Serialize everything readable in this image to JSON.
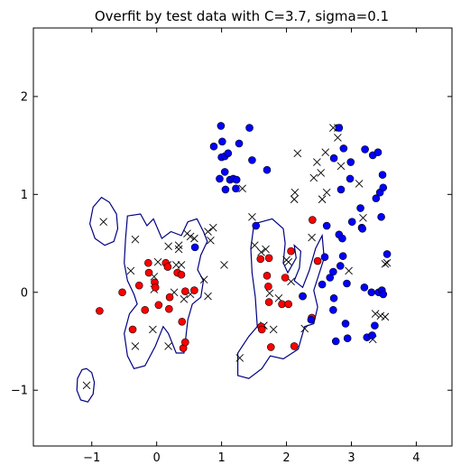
{
  "chart_data": {
    "type": "scatter",
    "title": "Overfit by test data with C=3.7, sigma=0.1",
    "xlabel": "",
    "ylabel": "",
    "xlim": [
      -1.9,
      4.55
    ],
    "ylim": [
      -1.57,
      2.7
    ],
    "xticks": [
      -1,
      0,
      1,
      2,
      3,
      4
    ],
    "xtick_labels": [
      "−1",
      "0",
      "1",
      "2",
      "3",
      "4"
    ],
    "yticks": [
      -1,
      0,
      1,
      2
    ],
    "ytick_labels": [
      "−1",
      "0",
      "1",
      "2"
    ],
    "grid": false,
    "legend": "none",
    "colors": {
      "red_points": "#ff0000",
      "blue_points": "#0000ff",
      "cross_marks": "#000000",
      "boundary": "#000080"
    },
    "series": [
      {
        "marker": "circle",
        "color": "#ff0000",
        "points": [
          [
            -0.88,
            -0.19
          ],
          [
            -0.53,
            0.0
          ],
          [
            -0.37,
            -0.38
          ],
          [
            -0.27,
            0.07
          ],
          [
            -0.18,
            -0.18
          ],
          [
            -0.13,
            0.3
          ],
          [
            -0.12,
            0.2
          ],
          [
            -0.03,
            0.1
          ],
          [
            -0.02,
            0.05
          ],
          [
            0.03,
            -0.13
          ],
          [
            0.14,
            0.3
          ],
          [
            0.17,
            0.26
          ],
          [
            0.19,
            -0.17
          ],
          [
            0.2,
            -0.05
          ],
          [
            0.32,
            0.2
          ],
          [
            0.38,
            0.18
          ],
          [
            0.39,
            -0.3
          ],
          [
            0.41,
            -0.57
          ],
          [
            0.44,
            -0.51
          ],
          [
            0.44,
            0.01
          ],
          [
            0.58,
            0.02
          ],
          [
            1.6,
            0.34
          ],
          [
            1.61,
            -0.35
          ],
          [
            1.62,
            -0.38
          ],
          [
            1.7,
            0.17
          ],
          [
            1.72,
            0.06
          ],
          [
            1.73,
            -0.1
          ],
          [
            1.73,
            0.35
          ],
          [
            1.76,
            -0.56
          ],
          [
            1.93,
            -0.12
          ],
          [
            1.98,
            0.15
          ],
          [
            2.03,
            -0.12
          ],
          [
            2.07,
            0.42
          ],
          [
            2.12,
            -0.55
          ],
          [
            2.25,
            -0.04
          ],
          [
            2.39,
            -0.26
          ],
          [
            2.4,
            0.74
          ],
          [
            2.48,
            0.32
          ]
        ]
      },
      {
        "marker": "circle",
        "color": "#0000ff",
        "points": [
          [
            0.59,
            0.46
          ],
          [
            0.88,
            1.49
          ],
          [
            0.97,
            1.16
          ],
          [
            0.99,
            1.7
          ],
          [
            1.0,
            1.38
          ],
          [
            1.01,
            1.54
          ],
          [
            1.05,
            1.39
          ],
          [
            1.05,
            1.23
          ],
          [
            1.06,
            1.05
          ],
          [
            1.1,
            1.42
          ],
          [
            1.13,
            1.15
          ],
          [
            1.18,
            1.16
          ],
          [
            1.22,
            1.06
          ],
          [
            1.23,
            1.15
          ],
          [
            1.27,
            1.52
          ],
          [
            1.43,
            1.68
          ],
          [
            1.47,
            1.35
          ],
          [
            1.53,
            0.68
          ],
          [
            1.7,
            1.25
          ],
          [
            2.25,
            -0.04
          ],
          [
            2.38,
            -0.28
          ],
          [
            2.55,
            0.08
          ],
          [
            2.59,
            0.36
          ],
          [
            2.62,
            0.68
          ],
          [
            2.67,
            0.15
          ],
          [
            2.72,
            0.21
          ],
          [
            2.72,
            -0.18
          ],
          [
            2.73,
            1.37
          ],
          [
            2.73,
            -0.06
          ],
          [
            2.76,
            -0.5
          ],
          [
            2.81,
            0.59
          ],
          [
            2.81,
            1.68
          ],
          [
            2.83,
            0.27
          ],
          [
            2.84,
            1.05
          ],
          [
            2.86,
            0.55
          ],
          [
            2.87,
            0.37
          ],
          [
            2.88,
            1.47
          ],
          [
            2.91,
            -0.32
          ],
          [
            2.93,
            0.09
          ],
          [
            2.94,
            -0.47
          ],
          [
            2.98,
            1.16
          ],
          [
            2.99,
            1.33
          ],
          [
            3.01,
            0.72
          ],
          [
            3.14,
            0.86
          ],
          [
            3.16,
            0.66
          ],
          [
            3.17,
            0.65
          ],
          [
            3.2,
            0.05
          ],
          [
            3.21,
            1.46
          ],
          [
            3.24,
            -0.46
          ],
          [
            3.31,
            0.0
          ],
          [
            3.32,
            -0.44
          ],
          [
            3.33,
            1.4
          ],
          [
            3.36,
            -0.34
          ],
          [
            3.38,
            0.96
          ],
          [
            3.41,
            1.43
          ],
          [
            3.42,
            0.0
          ],
          [
            3.44,
            1.02
          ],
          [
            3.46,
            0.77
          ],
          [
            3.47,
            0.02
          ],
          [
            3.48,
            1.2
          ],
          [
            3.49,
            1.07
          ],
          [
            3.49,
            -0.02
          ],
          [
            3.55,
            0.39
          ]
        ]
      },
      {
        "marker": "x",
        "color": "#000000",
        "points": [
          [
            -1.08,
            -0.95
          ],
          [
            -0.82,
            0.72
          ],
          [
            -0.4,
            0.22
          ],
          [
            -0.33,
            0.54
          ],
          [
            -0.33,
            -0.55
          ],
          [
            -0.06,
            -0.38
          ],
          [
            -0.04,
            0.16
          ],
          [
            -0.04,
            0.03
          ],
          [
            0.02,
            0.31
          ],
          [
            0.17,
            0.28
          ],
          [
            0.18,
            -0.55
          ],
          [
            0.18,
            0.47
          ],
          [
            0.27,
            0.0
          ],
          [
            0.3,
            0.28
          ],
          [
            0.34,
            0.44
          ],
          [
            0.34,
            0.48
          ],
          [
            0.38,
            0.28
          ],
          [
            0.42,
            -0.07
          ],
          [
            0.47,
            0.6
          ],
          [
            0.52,
            0.57
          ],
          [
            0.52,
            -0.02
          ],
          [
            0.58,
            0.55
          ],
          [
            0.73,
            0.13
          ],
          [
            0.79,
            -0.04
          ],
          [
            0.79,
            0.62
          ],
          [
            0.83,
            0.53
          ],
          [
            0.87,
            0.66
          ],
          [
            1.04,
            0.28
          ],
          [
            1.32,
            1.06
          ],
          [
            1.47,
            0.77
          ],
          [
            1.51,
            0.48
          ],
          [
            1.61,
            0.41
          ],
          [
            1.68,
            0.44
          ],
          [
            1.74,
            -0.01
          ],
          [
            1.88,
            -0.06
          ],
          [
            2.0,
            0.33
          ],
          [
            2.03,
            0.31
          ],
          [
            2.07,
            0.11
          ],
          [
            2.12,
            0.95
          ],
          [
            2.13,
            1.02
          ],
          [
            2.17,
            1.42
          ],
          [
            2.28,
            -0.37
          ],
          [
            2.39,
            0.56
          ],
          [
            2.42,
            1.17
          ],
          [
            2.47,
            1.33
          ],
          [
            2.53,
            1.22
          ],
          [
            2.55,
            0.95
          ],
          [
            2.6,
            1.43
          ],
          [
            2.62,
            1.02
          ],
          [
            2.72,
            1.68
          ],
          [
            2.79,
            1.68
          ],
          [
            2.79,
            1.58
          ],
          [
            2.84,
            1.29
          ],
          [
            2.96,
            0.22
          ],
          [
            3.12,
            1.11
          ],
          [
            3.18,
            0.76
          ],
          [
            3.33,
            -0.48
          ],
          [
            3.37,
            -0.22
          ],
          [
            3.45,
            -0.24
          ],
          [
            3.52,
            -0.25
          ],
          [
            3.52,
            0.29
          ],
          [
            3.55,
            0.3
          ],
          [
            1.28,
            -0.67
          ],
          [
            1.8,
            -0.38
          ],
          [
            1.65,
            -0.34
          ]
        ]
      }
    ],
    "contours": [
      [
        [
          -1.08,
          -0.78
        ],
        [
          -1.0,
          -0.82
        ],
        [
          -0.96,
          -0.92
        ],
        [
          -0.98,
          -1.04
        ],
        [
          -1.06,
          -1.12
        ],
        [
          -1.17,
          -1.1
        ],
        [
          -1.23,
          -1.0
        ],
        [
          -1.22,
          -0.88
        ],
        [
          -1.15,
          -0.79
        ],
        [
          -1.08,
          -0.78
        ]
      ],
      [
        [
          -0.85,
          0.97
        ],
        [
          -0.73,
          0.92
        ],
        [
          -0.62,
          0.8
        ],
        [
          -0.6,
          0.65
        ],
        [
          -0.66,
          0.52
        ],
        [
          -0.8,
          0.48
        ],
        [
          -0.95,
          0.55
        ],
        [
          -1.03,
          0.7
        ],
        [
          -0.98,
          0.87
        ],
        [
          -0.85,
          0.97
        ]
      ],
      [
        [
          -0.45,
          0.78
        ],
        [
          -0.25,
          0.8
        ],
        [
          -0.15,
          0.68
        ],
        [
          -0.05,
          0.75
        ],
        [
          0.08,
          0.55
        ],
        [
          0.22,
          0.62
        ],
        [
          0.38,
          0.58
        ],
        [
          0.48,
          0.72
        ],
        [
          0.62,
          0.75
        ],
        [
          0.72,
          0.62
        ],
        [
          0.78,
          0.52
        ],
        [
          0.68,
          0.38
        ],
        [
          0.63,
          0.23
        ],
        [
          0.72,
          0.12
        ],
        [
          0.68,
          -0.05
        ],
        [
          0.55,
          -0.12
        ],
        [
          0.48,
          -0.28
        ],
        [
          0.45,
          -0.45
        ],
        [
          0.42,
          -0.62
        ],
        [
          0.3,
          -0.62
        ],
        [
          0.18,
          -0.42
        ],
        [
          0.1,
          -0.35
        ],
        [
          -0.02,
          -0.55
        ],
        [
          -0.18,
          -0.75
        ],
        [
          -0.35,
          -0.78
        ],
        [
          -0.45,
          -0.65
        ],
        [
          -0.5,
          -0.42
        ],
        [
          -0.42,
          -0.22
        ],
        [
          -0.3,
          -0.12
        ],
        [
          -0.35,
          -0.02
        ],
        [
          -0.45,
          0.12
        ],
        [
          -0.5,
          0.3
        ],
        [
          -0.48,
          0.55
        ],
        [
          -0.45,
          0.78
        ]
      ],
      [
        [
          1.5,
          0.7
        ],
        [
          1.78,
          0.75
        ],
        [
          1.95,
          0.65
        ],
        [
          1.98,
          0.5
        ],
        [
          1.95,
          0.3
        ],
        [
          2.02,
          0.2
        ],
        [
          2.15,
          0.35
        ],
        [
          2.12,
          0.48
        ],
        [
          2.22,
          0.42
        ],
        [
          2.2,
          0.25
        ],
        [
          2.12,
          0.12
        ],
        [
          2.25,
          0.05
        ],
        [
          2.35,
          0.22
        ],
        [
          2.45,
          0.45
        ],
        [
          2.55,
          0.58
        ],
        [
          2.58,
          0.35
        ],
        [
          2.42,
          0.02
        ],
        [
          2.48,
          -0.15
        ],
        [
          2.42,
          -0.32
        ],
        [
          2.28,
          -0.35
        ],
        [
          2.18,
          -0.58
        ],
        [
          1.95,
          -0.68
        ],
        [
          1.75,
          -0.65
        ],
        [
          1.62,
          -0.78
        ],
        [
          1.42,
          -0.88
        ],
        [
          1.25,
          -0.85
        ],
        [
          1.25,
          -0.62
        ],
        [
          1.42,
          -0.45
        ],
        [
          1.55,
          -0.35
        ],
        [
          1.52,
          -0.05
        ],
        [
          1.47,
          0.2
        ],
        [
          1.45,
          0.45
        ],
        [
          1.5,
          0.7
        ]
      ]
    ]
  }
}
